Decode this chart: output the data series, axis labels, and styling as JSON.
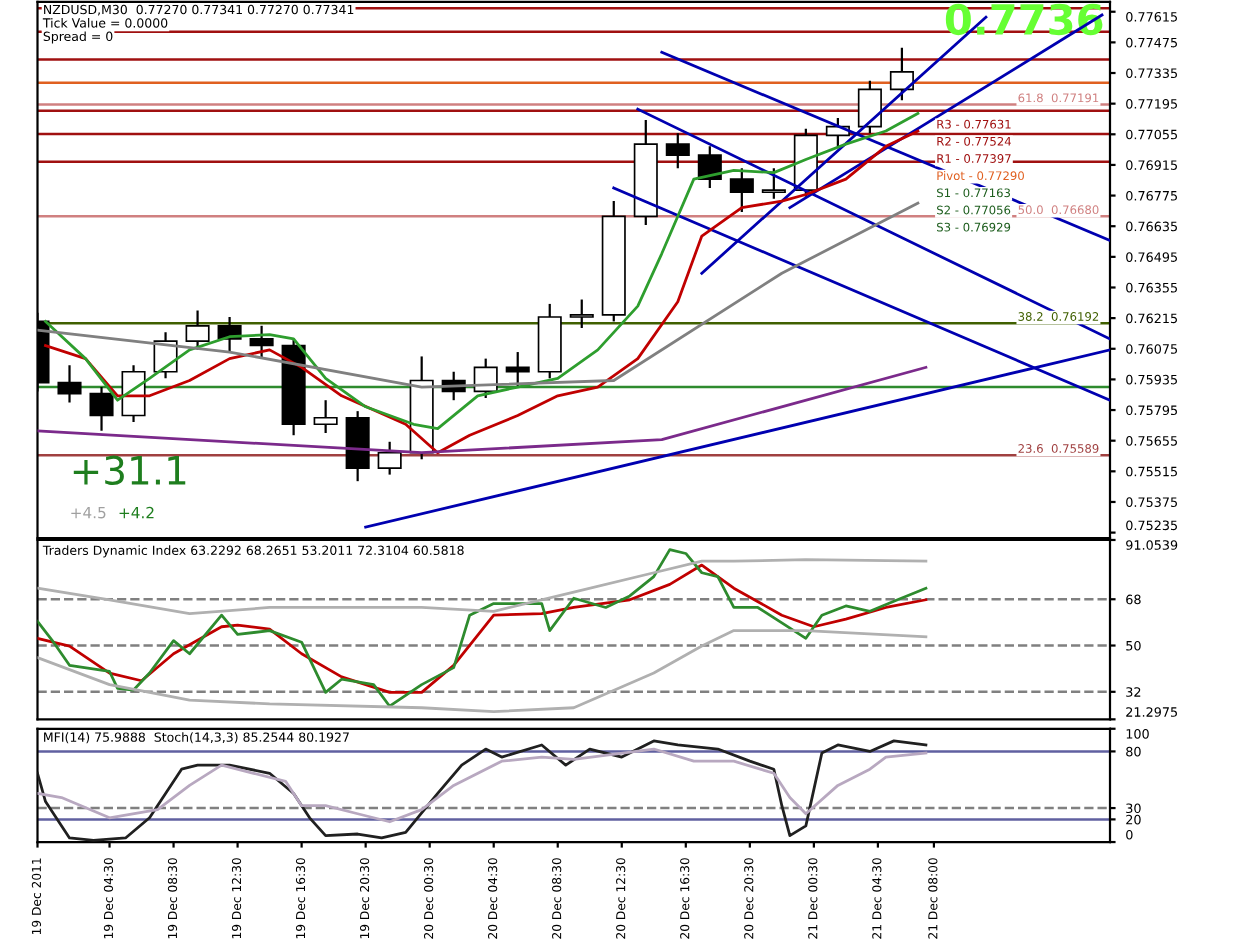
{
  "chart_data": [
    {
      "type": "candlestick",
      "x": [
        "2011-12-19T00:00",
        "2011-12-19T02:00",
        "2011-12-19T04:00",
        "2011-12-19T06:00",
        "2011-12-19T08:00",
        "2011-12-19T10:00",
        "2011-12-19T12:00",
        "2011-12-19T14:00",
        "2011-12-19T16:00",
        "2011-12-19T18:00",
        "2011-12-19T20:00",
        "2011-12-19T22:00",
        "2011-12-20T00:00",
        "2011-12-20T02:00",
        "2011-12-20T04:00",
        "2011-12-20T06:00",
        "2011-12-20T08:00",
        "2011-12-20T10:00",
        "2011-12-20T12:00",
        "2011-12-20T14:00",
        "2011-12-20T16:00",
        "2011-12-20T18:00",
        "2011-12-20T20:00",
        "2011-12-20T22:00",
        "2011-12-21T00:00",
        "2011-12-21T02:00",
        "2011-12-21T04:00",
        "2011-12-21T06:00"
      ],
      "ohlc": [
        [
          0.762,
          0.7624,
          0.7588,
          0.7592
        ],
        [
          0.7592,
          0.76,
          0.7583,
          0.7587
        ],
        [
          0.7587,
          0.759,
          0.757,
          0.7577
        ],
        [
          0.7577,
          0.76,
          0.7574,
          0.7597
        ],
        [
          0.7597,
          0.7615,
          0.7594,
          0.7611
        ],
        [
          0.7611,
          0.7625,
          0.7607,
          0.7618
        ],
        [
          0.7618,
          0.7622,
          0.7606,
          0.7612
        ],
        [
          0.7612,
          0.7618,
          0.7603,
          0.7609
        ],
        [
          0.7609,
          0.7612,
          0.7568,
          0.7573
        ],
        [
          0.7573,
          0.7584,
          0.7569,
          0.7576
        ],
        [
          0.7576,
          0.7579,
          0.7547,
          0.7553
        ],
        [
          0.7553,
          0.7565,
          0.755,
          0.756
        ],
        [
          0.756,
          0.7604,
          0.7557,
          0.7593
        ],
        [
          0.7593,
          0.7597,
          0.7584,
          0.7588
        ],
        [
          0.7588,
          0.7603,
          0.7585,
          0.7599
        ],
        [
          0.7599,
          0.7606,
          0.759,
          0.7597
        ],
        [
          0.7597,
          0.7628,
          0.7594,
          0.7622
        ],
        [
          0.7622,
          0.763,
          0.7617,
          0.7623
        ],
        [
          0.7623,
          0.7675,
          0.762,
          0.7668
        ],
        [
          0.7668,
          0.7712,
          0.7664,
          0.7701
        ],
        [
          0.7701,
          0.7706,
          0.769,
          0.7696
        ],
        [
          0.7696,
          0.77,
          0.7681,
          0.7685
        ],
        [
          0.7685,
          0.769,
          0.767,
          0.7679
        ],
        [
          0.7679,
          0.769,
          0.7676,
          0.768
        ],
        [
          0.768,
          0.7708,
          0.7677,
          0.7705
        ],
        [
          0.7705,
          0.7713,
          0.77,
          0.7709
        ],
        [
          0.7709,
          0.773,
          0.7706,
          0.7726
        ],
        [
          0.7726,
          0.7745,
          0.7721,
          0.7734
        ]
      ],
      "series": [
        {
          "type": "line",
          "color": "#808080",
          "x": [
            "2011-12-19T00:00",
            "2011-12-19T12:00",
            "2011-12-20T00:00",
            "2011-12-20T12:00",
            "2011-12-20T22:30",
            "2011-12-21T07:00"
          ],
          "values": [
            0.7616,
            0.7606,
            0.759,
            0.7593,
            0.7642,
            0.7674
          ]
        },
        {
          "type": "line",
          "color": "#7b2a8b",
          "x": [
            "2011-12-19T00:00",
            "2011-12-20T00:00",
            "2011-12-20T15:00",
            "2011-12-21T07:30"
          ],
          "values": [
            0.757,
            0.756,
            0.7566,
            0.7599
          ]
        },
        {
          "type": "line",
          "color": "#2e9e2e",
          "x": [
            "2011-12-19T00:30",
            "2011-12-19T03:00",
            "2011-12-19T05:00",
            "2011-12-19T07:00",
            "2011-12-19T09:30",
            "2011-12-19T12:00",
            "2011-12-19T14:30",
            "2011-12-19T16:00",
            "2011-12-19T18:00",
            "2011-12-19T20:30",
            "2011-12-19T23:30",
            "2011-12-20T01:00",
            "2011-12-20T03:30",
            "2011-12-20T06:00",
            "2011-12-20T08:30",
            "2011-12-20T11:00",
            "2011-12-20T13:30",
            "2011-12-20T15:00",
            "2011-12-20T17:00",
            "2011-12-20T19:30",
            "2011-12-20T22:00",
            "2011-12-21T00:00",
            "2011-12-21T02:30",
            "2011-12-21T05:00",
            "2011-12-21T07:00"
          ],
          "values": [
            0.762,
            0.7603,
            0.7584,
            0.7594,
            0.7607,
            0.7613,
            0.7614,
            0.7612,
            0.7594,
            0.7581,
            0.7573,
            0.7571,
            0.7586,
            0.759,
            0.7594,
            0.7607,
            0.7627,
            0.7651,
            0.7685,
            0.7689,
            0.7688,
            0.7694,
            0.7701,
            0.7707,
            0.7715
          ]
        },
        {
          "type": "line",
          "color": "#c00000",
          "x": [
            "2011-12-19T00:30",
            "2011-12-19T03:00",
            "2011-12-19T05:00",
            "2011-12-19T07:00",
            "2011-12-19T09:30",
            "2011-12-19T12:00",
            "2011-12-19T14:30",
            "2011-12-19T16:30",
            "2011-12-19T19:00",
            "2011-12-19T23:00",
            "2011-12-20T01:00",
            "2011-12-20T03:00",
            "2011-12-20T06:00",
            "2011-12-20T08:30",
            "2011-12-20T11:00",
            "2011-12-20T13:30",
            "2011-12-20T16:00",
            "2011-12-20T17:30",
            "2011-12-20T20:00",
            "2011-12-20T22:30",
            "2011-12-21T00:00",
            "2011-12-21T02:30",
            "2011-12-21T05:00",
            "2011-12-21T07:00"
          ],
          "values": [
            0.7609,
            0.7603,
            0.7586,
            0.7586,
            0.7593,
            0.7603,
            0.7607,
            0.7599,
            0.7586,
            0.7573,
            0.756,
            0.7568,
            0.7577,
            0.7586,
            0.759,
            0.7603,
            0.7629,
            0.7659,
            0.7672,
            0.7675,
            0.7678,
            0.7685,
            0.77,
            0.7707
          ]
        },
        {
          "type": "line",
          "color": "#0000b0",
          "x": [
            "2011-12-19T20:30",
            "2011-12-21T19:00"
          ],
          "values": [
            0.7526,
            0.7607
          ]
        },
        {
          "type": "line",
          "color": "#0000b0",
          "x": [
            "2011-12-20T15:00",
            "2011-12-21T19:00"
          ],
          "values": [
            0.7743,
            0.7657
          ]
        },
        {
          "type": "line",
          "color": "#0000b0",
          "x": [
            "2011-12-20T13:30",
            "2011-12-21T19:00"
          ],
          "values": [
            0.7717,
            0.7612
          ]
        },
        {
          "type": "line",
          "color": "#0000b0",
          "x": [
            "2011-12-20T12:00",
            "2011-12-21T19:00"
          ],
          "values": [
            0.7681,
            0.7584
          ]
        },
        {
          "type": "line",
          "color": "#0000b0",
          "x": [
            "2011-12-20T17:30",
            "2011-12-21T11:15"
          ],
          "values": [
            0.7642,
            0.7759
          ]
        },
        {
          "type": "line",
          "color": "#0000b0",
          "x": [
            "2011-12-20T23:00",
            "2011-12-21T18:30"
          ],
          "values": [
            0.7672,
            0.776
          ]
        }
      ],
      "xlim": [
        "2011-12-19T00:00",
        "2011-12-21T19:00"
      ],
      "ylim": [
        0.7521,
        0.7766
      ],
      "yticks": [
        0.75235,
        0.75375,
        0.75515,
        0.75655,
        0.75795,
        0.75935,
        0.76075,
        0.76215,
        0.76355,
        0.76495,
        0.76635,
        0.76775,
        0.76915,
        0.77055,
        0.77195,
        0.77335,
        0.77475,
        0.77615
      ],
      "tick_labels": "y",
      "ref_lines": [
        {
          "axis": "y",
          "value": 0.77631,
          "color": "#a01010"
        },
        {
          "axis": "y",
          "value": 0.77524,
          "color": "#a01010"
        },
        {
          "axis": "y",
          "value": 0.77397,
          "color": "#a01010"
        },
        {
          "axis": "y",
          "value": 0.7729,
          "color": "#e06020"
        },
        {
          "axis": "y",
          "value": 0.77163,
          "color": "#a01010"
        },
        {
          "axis": "y",
          "value": 0.77056,
          "color": "#a01010"
        },
        {
          "axis": "y",
          "value": 0.76929,
          "color": "#a01010"
        },
        {
          "axis": "y",
          "value": 0.77191,
          "label": "61.8  0.77191",
          "color": "#d08080"
        },
        {
          "axis": "y",
          "value": 0.7668,
          "label": "50.0  0.76680",
          "color": "#d08080"
        },
        {
          "axis": "y",
          "value": 0.76192,
          "label": "38.2  0.76192",
          "color": "#406000"
        },
        {
          "axis": "y",
          "value": 0.75589,
          "label": "23.6  0.75589",
          "color": "#a04040"
        },
        {
          "axis": "y",
          "value": 0.759,
          "color": "#2e8b2e"
        }
      ],
      "annotations": [
        "NZDUSD,M30  0.77270 0.77341 0.77270 0.77341",
        "Tick Value = 0.0000",
        "Spread = 0",
        "0.7736",
        "R3 - 0.77631",
        "R2 - 0.77524",
        "R1 - 0.77397",
        "Pivot - 0.77290",
        "S1 - 0.77163",
        "S2 - 0.77056",
        "S3 - 0.76929",
        "+31.1",
        "+4.5",
        "+4.2"
      ]
    },
    {
      "type": "line",
      "series": [
        {
          "color": "#b0b0b0",
          "x": [
            "2011-12-19T00:00",
            "2011-12-19T04:30",
            "2011-12-19T09:30",
            "2011-12-19T14:30",
            "2011-12-20T00:00",
            "2011-12-20T04:30",
            "2011-12-20T09:30",
            "2011-12-20T14:30",
            "2011-12-20T17:30",
            "2011-12-20T19:30",
            "2011-12-21T00:00",
            "2011-12-21T07:30"
          ],
          "values": [
            72.3,
            67.8,
            62.4,
            64.8,
            64.8,
            63.3,
            70.8,
            78.3,
            82.8,
            82.8,
            83.4,
            82.8
          ]
        },
        {
          "color": "#b0b0b0",
          "x": [
            "2011-12-19T00:00",
            "2011-12-19T04:30",
            "2011-12-19T09:30",
            "2011-12-19T14:30",
            "2011-12-20T00:00",
            "2011-12-20T04:30",
            "2011-12-20T09:30",
            "2011-12-20T14:30",
            "2011-12-20T17:30",
            "2011-12-20T19:30",
            "2011-12-21T00:00",
            "2011-12-21T07:30"
          ],
          "values": [
            45.3,
            34.8,
            28.8,
            27.3,
            25.8,
            24.3,
            25.8,
            39.3,
            49.8,
            55.8,
            55.8,
            53.4
          ]
        },
        {
          "color": "#2e8b2e",
          "x": [
            "2011-12-19T00:00",
            "2011-12-19T01:00",
            "2011-12-19T02:00",
            "2011-12-19T04:30",
            "2011-12-19T05:00",
            "2011-12-19T06:00",
            "2011-12-19T07:00",
            "2011-12-19T08:30",
            "2011-12-19T09:30",
            "2011-12-19T11:30",
            "2011-12-19T12:30",
            "2011-12-19T14:30",
            "2011-12-19T16:30",
            "2011-12-19T18:00",
            "2011-12-19T19:00",
            "2011-12-19T21:00",
            "2011-12-19T22:00",
            "2011-12-20T00:00",
            "2011-12-20T02:00",
            "2011-12-20T03:00",
            "2011-12-20T04:30",
            "2011-12-20T07:30",
            "2011-12-20T08:00",
            "2011-12-20T09:30",
            "2011-12-20T11:30",
            "2011-12-20T13:00",
            "2011-12-20T14:30",
            "2011-12-20T15:30",
            "2011-12-20T16:30",
            "2011-12-20T17:30",
            "2011-12-20T18:30",
            "2011-12-20T19:30",
            "2011-12-20T21:00",
            "2011-12-20T22:30",
            "2011-12-21T00:00",
            "2011-12-21T01:00",
            "2011-12-21T02:30",
            "2011-12-21T04:00",
            "2011-12-21T05:30",
            "2011-12-21T07:30"
          ],
          "values": [
            59.4,
            51.3,
            42.3,
            39.9,
            33.3,
            32.7,
            39.3,
            51.9,
            46.8,
            61.8,
            54.3,
            55.8,
            51.3,
            31.8,
            36.9,
            34.8,
            26.4,
            34.8,
            41.4,
            61.8,
            66.3,
            66.3,
            55.8,
            68.4,
            64.8,
            69.3,
            76.8,
            87.3,
            85.8,
            78.3,
            76.8,
            64.8,
            64.8,
            58.8,
            52.8,
            61.8,
            65.4,
            63.3,
            67.2,
            72.3
          ]
        },
        {
          "color": "#c00000",
          "x": [
            "2011-12-19T00:00",
            "2011-12-19T02:00",
            "2011-12-19T04:30",
            "2011-12-19T06:30",
            "2011-12-19T08:30",
            "2011-12-19T11:30",
            "2011-12-19T12:30",
            "2011-12-19T14:30",
            "2011-12-19T16:30",
            "2011-12-19T19:00",
            "2011-12-19T22:00",
            "2011-12-20T00:00",
            "2011-12-20T02:00",
            "2011-12-20T04:30",
            "2011-12-20T07:30",
            "2011-12-20T09:30",
            "2011-12-20T13:00",
            "2011-12-20T15:30",
            "2011-12-20T17:30",
            "2011-12-20T19:30",
            "2011-12-20T22:30",
            "2011-12-21T00:30",
            "2011-12-21T02:30",
            "2011-12-21T05:00",
            "2011-12-21T07:30"
          ],
          "values": [
            52.8,
            49.8,
            39.3,
            36.3,
            46.8,
            57.3,
            57.9,
            56.4,
            46.8,
            37.8,
            31.8,
            31.8,
            42.3,
            61.8,
            62.4,
            64.8,
            67.8,
            73.8,
            81.3,
            72.3,
            61.8,
            57.3,
            60.3,
            64.8,
            67.8
          ]
        }
      ],
      "xlim": [
        "2011-12-19T00:00",
        "2011-12-21T19:00"
      ],
      "ylim": [
        21.2975,
        91.0539
      ],
      "yticks": [
        21.2975,
        32,
        50,
        68,
        91.0539
      ],
      "tick_labels": "y",
      "ref_lines": [
        {
          "axis": "y",
          "value": 68,
          "color": "#808080",
          "line_style": "dashed"
        },
        {
          "axis": "y",
          "value": 50,
          "color": "#808080",
          "line_style": "dashed"
        },
        {
          "axis": "y",
          "value": 32,
          "color": "#808080",
          "line_style": "dashed"
        }
      ],
      "annotations": [
        "Traders Dynamic Index 63.2292 68.2651 53.2011 72.3104 60.5818"
      ]
    },
    {
      "type": "line",
      "series": [
        {
          "color": "#b8a8c0",
          "x": [
            "2011-12-19T00:00",
            "2011-12-19T01:30",
            "2011-12-19T04:30",
            "2011-12-19T07:30",
            "2011-12-19T09:30",
            "2011-12-19T11:30",
            "2011-12-19T13:30",
            "2011-12-19T15:30",
            "2011-12-19T16:30",
            "2011-12-19T18:00",
            "2011-12-19T20:00",
            "2011-12-19T22:00",
            "2011-12-20T00:00",
            "2011-12-20T02:00",
            "2011-12-20T05:00",
            "2011-12-20T07:30",
            "2011-12-20T09:30",
            "2011-12-20T14:30",
            "2011-12-20T17:00",
            "2011-12-20T19:30",
            "2011-12-20T22:00",
            "2011-12-20T23:00",
            "2011-12-21T00:00",
            "2011-12-21T02:00",
            "2011-12-21T04:00",
            "2011-12-21T05:00",
            "2011-12-21T07:30"
          ],
          "values": [
            42.9,
            39.3,
            21.4,
            28.6,
            50.0,
            67.9,
            60.7,
            53.6,
            32.1,
            32.1,
            25.0,
            17.9,
            28.6,
            50.0,
            71.4,
            75.0,
            72.9,
            82.1,
            71.4,
            71.4,
            60.7,
            39.3,
            25.0,
            50.0,
            64.3,
            75.0,
            78.6
          ]
        },
        {
          "color": "#202020",
          "x": [
            "2011-12-19T00:00",
            "2011-12-19T00:30",
            "2011-12-19T02:00",
            "2011-12-19T03:30",
            "2011-12-19T05:30",
            "2011-12-19T07:00",
            "2011-12-19T09:00",
            "2011-12-19T10:00",
            "2011-12-19T12:00",
            "2011-12-19T14:30",
            "2011-12-19T16:00",
            "2011-12-19T17:00",
            "2011-12-19T18:00",
            "2011-12-19T20:00",
            "2011-12-19T21:30",
            "2011-12-19T23:00",
            "2011-12-20T01:00",
            "2011-12-20T02:30",
            "2011-12-20T04:00",
            "2011-12-20T05:00",
            "2011-12-20T07:30",
            "2011-12-20T09:00",
            "2011-12-20T10:30",
            "2011-12-20T12:30",
            "2011-12-20T14:30",
            "2011-12-20T16:00",
            "2011-12-20T18:30",
            "2011-12-20T20:30",
            "2011-12-20T22:00",
            "2011-12-20T22:30",
            "2011-12-20T23:00",
            "2011-12-21T00:00",
            "2011-12-21T01:00",
            "2011-12-21T02:00",
            "2011-12-21T04:00",
            "2011-12-21T05:30",
            "2011-12-21T07:30"
          ],
          "values": [
            60.7,
            35.7,
            3.6,
            1.4,
            3.6,
            21.4,
            64.3,
            67.9,
            67.9,
            60.7,
            42.9,
            21.4,
            5.7,
            7.1,
            3.6,
            8.6,
            42.9,
            67.9,
            82.1,
            75.0,
            85.7,
            67.9,
            82.1,
            75.0,
            89.3,
            85.7,
            82.1,
            71.4,
            64.3,
            32.1,
            5.7,
            14.3,
            78.6,
            85.7,
            80.0,
            89.3,
            85.7
          ]
        }
      ],
      "xlim": [
        "2011-12-19T00:00",
        "2011-12-21T19:00"
      ],
      "ylim": [
        0,
        100
      ],
      "yticks": [
        0,
        20,
        30,
        80,
        100
      ],
      "xticks": [
        {
          "value": "2011-12-19T00:00",
          "label": "19 Dec 2011"
        },
        {
          "value": "2011-12-19T04:30",
          "label": "19 Dec 04:30"
        },
        {
          "value": "2011-12-19T08:30",
          "label": "19 Dec 08:30"
        },
        {
          "value": "2011-12-19T12:30",
          "label": "19 Dec 12:30"
        },
        {
          "value": "2011-12-19T16:30",
          "label": "19 Dec 16:30"
        },
        {
          "value": "2011-12-19T20:30",
          "label": "19 Dec 20:30"
        },
        {
          "value": "2011-12-20T00:30",
          "label": "20 Dec 00:30"
        },
        {
          "value": "2011-12-20T04:30",
          "label": "20 Dec 04:30"
        },
        {
          "value": "2011-12-20T08:30",
          "label": "20 Dec 08:30"
        },
        {
          "value": "2011-12-20T12:30",
          "label": "20 Dec 12:30"
        },
        {
          "value": "2011-12-20T16:30",
          "label": "20 Dec 16:30"
        },
        {
          "value": "2011-12-20T20:30",
          "label": "20 Dec 20:30"
        },
        {
          "value": "2011-12-21T00:30",
          "label": "21 Dec 00:30"
        },
        {
          "value": "2011-12-21T04:30",
          "label": "21 Dec 04:30"
        },
        {
          "value": "2011-12-21T08:00",
          "label": "21 Dec 08:00"
        }
      ],
      "ref_lines": [
        {
          "axis": "y",
          "value": 80,
          "color": "#6060a0"
        },
        {
          "axis": "y",
          "value": 30,
          "color": "#808080",
          "line_style": "dashed"
        },
        {
          "axis": "y",
          "value": 20,
          "color": "#6060a0"
        }
      ],
      "annotations": [
        "MFI(14) 75.9888  Stoch(14,3,3) 85.2544 80.1927"
      ]
    }
  ]
}
